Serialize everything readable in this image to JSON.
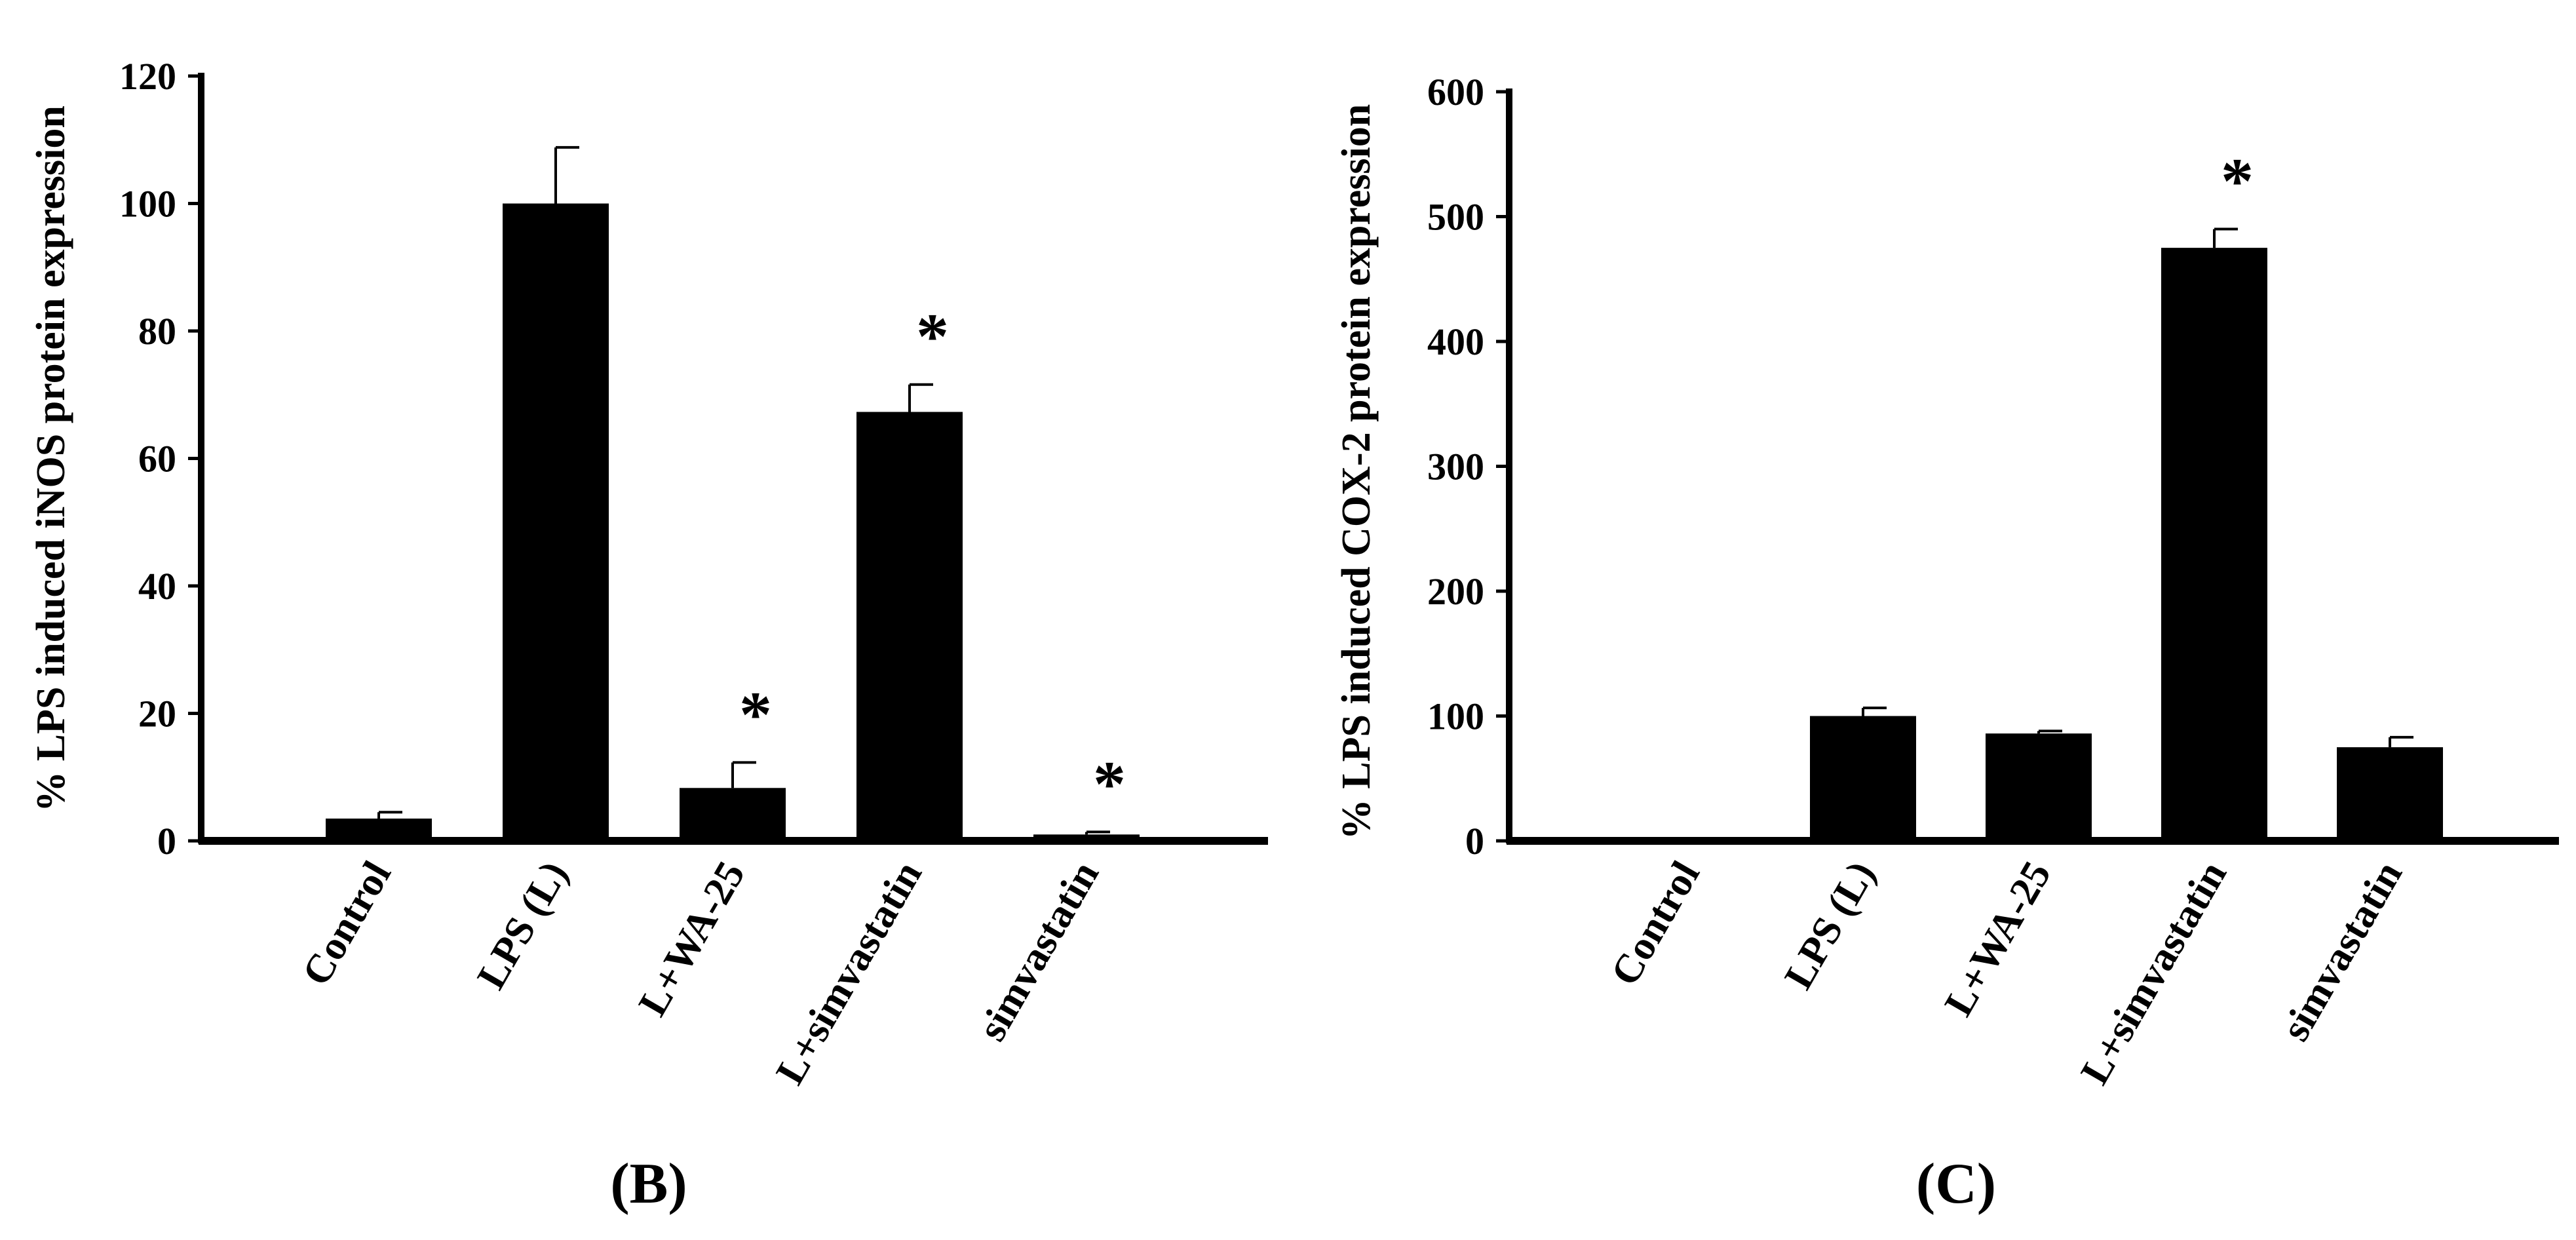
{
  "chart_data": [
    {
      "type": "bar",
      "panel_label": "(B)",
      "title": "",
      "xlabel": "",
      "ylabel": "% LPS induced iNOS protein expression",
      "ylim": [
        0,
        120
      ],
      "yticks": [
        0,
        20,
        40,
        60,
        80,
        100,
        120
      ],
      "categories": [
        "Control",
        "LPS (L)",
        "L+WA-25",
        "L+simvastatin",
        "simvastatin"
      ],
      "values": [
        3.5,
        100,
        8.3,
        67.3,
        1.0
      ],
      "errors": [
        1.0,
        8.8,
        4.0,
        4.3,
        0.4
      ],
      "annotations": [
        "",
        "",
        "*",
        "*",
        "*"
      ],
      "bar_color": "#000000",
      "grid": false,
      "legend": "none"
    },
    {
      "type": "bar",
      "panel_label": "(C)",
      "title": "",
      "xlabel": "",
      "ylabel": "% LPS induced COX-2 protein expression",
      "ylim": [
        0,
        600
      ],
      "yticks": [
        0,
        100,
        200,
        300,
        400,
        500,
        600
      ],
      "categories": [
        "Control",
        "LPS (L)",
        "L+WA-25",
        "L+simvastatin",
        "simvastatin"
      ],
      "values": [
        0,
        100,
        86,
        475,
        75
      ],
      "errors": [
        0,
        6.5,
        2.0,
        15,
        8
      ],
      "annotations": [
        "",
        "",
        "",
        "*",
        ""
      ],
      "bar_color": "#000000",
      "grid": false,
      "legend": "none"
    }
  ]
}
